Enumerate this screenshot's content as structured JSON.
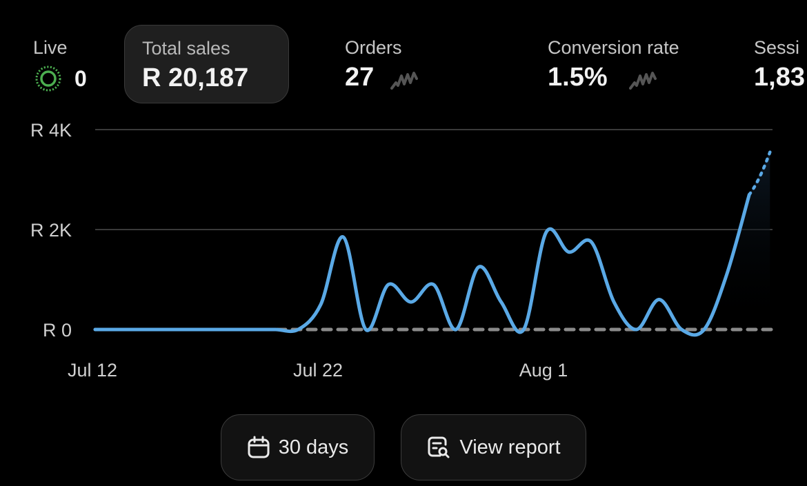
{
  "metrics": {
    "live": {
      "label": "Live",
      "value": "0"
    },
    "total_sales": {
      "label": "Total sales",
      "value": "R 20,187"
    },
    "orders": {
      "label": "Orders",
      "value": "27"
    },
    "conversion_rate": {
      "label": "Conversion rate",
      "value": "1.5%"
    },
    "sessions": {
      "label": "Sessi",
      "value": "1,83"
    }
  },
  "chart_data": {
    "type": "line",
    "title": "",
    "xlabel": "",
    "ylabel": "",
    "ylim": [
      0,
      4000
    ],
    "y_ticks": [
      "R 0",
      "R 2K",
      "R 4K"
    ],
    "y_tick_values": [
      0,
      2000,
      4000
    ],
    "x_tick_labels": [
      "Jul 12",
      "Jul 22",
      "Aug 1"
    ],
    "x_tick_days": [
      0,
      10,
      20
    ],
    "grid": true,
    "series": [
      {
        "values": [
          0,
          0,
          0,
          0,
          0,
          0,
          0,
          0,
          0,
          0,
          500,
          1850,
          0,
          900,
          550,
          900,
          0,
          1250,
          550,
          0,
          1950,
          1550,
          1750,
          550,
          0,
          600,
          0,
          0,
          1100,
          2700
        ],
        "projected_end": 3550,
        "comparison_values": [
          0,
          0,
          0,
          0,
          0,
          0,
          0,
          0,
          0,
          0,
          0,
          0,
          0,
          0,
          0,
          0,
          0,
          0,
          0,
          0,
          0,
          0,
          0,
          0,
          0,
          0,
          0,
          0,
          0,
          0,
          0
        ]
      }
    ],
    "colors": {
      "line": "#5aa9e6",
      "comparison": "#8a8a8a",
      "grid": "#3a3a3a",
      "live": "#4caf50"
    }
  },
  "buttons": {
    "days": {
      "label": "30 days",
      "icon": "calendar-icon"
    },
    "report": {
      "label": "View report",
      "icon": "report-search-icon"
    }
  }
}
